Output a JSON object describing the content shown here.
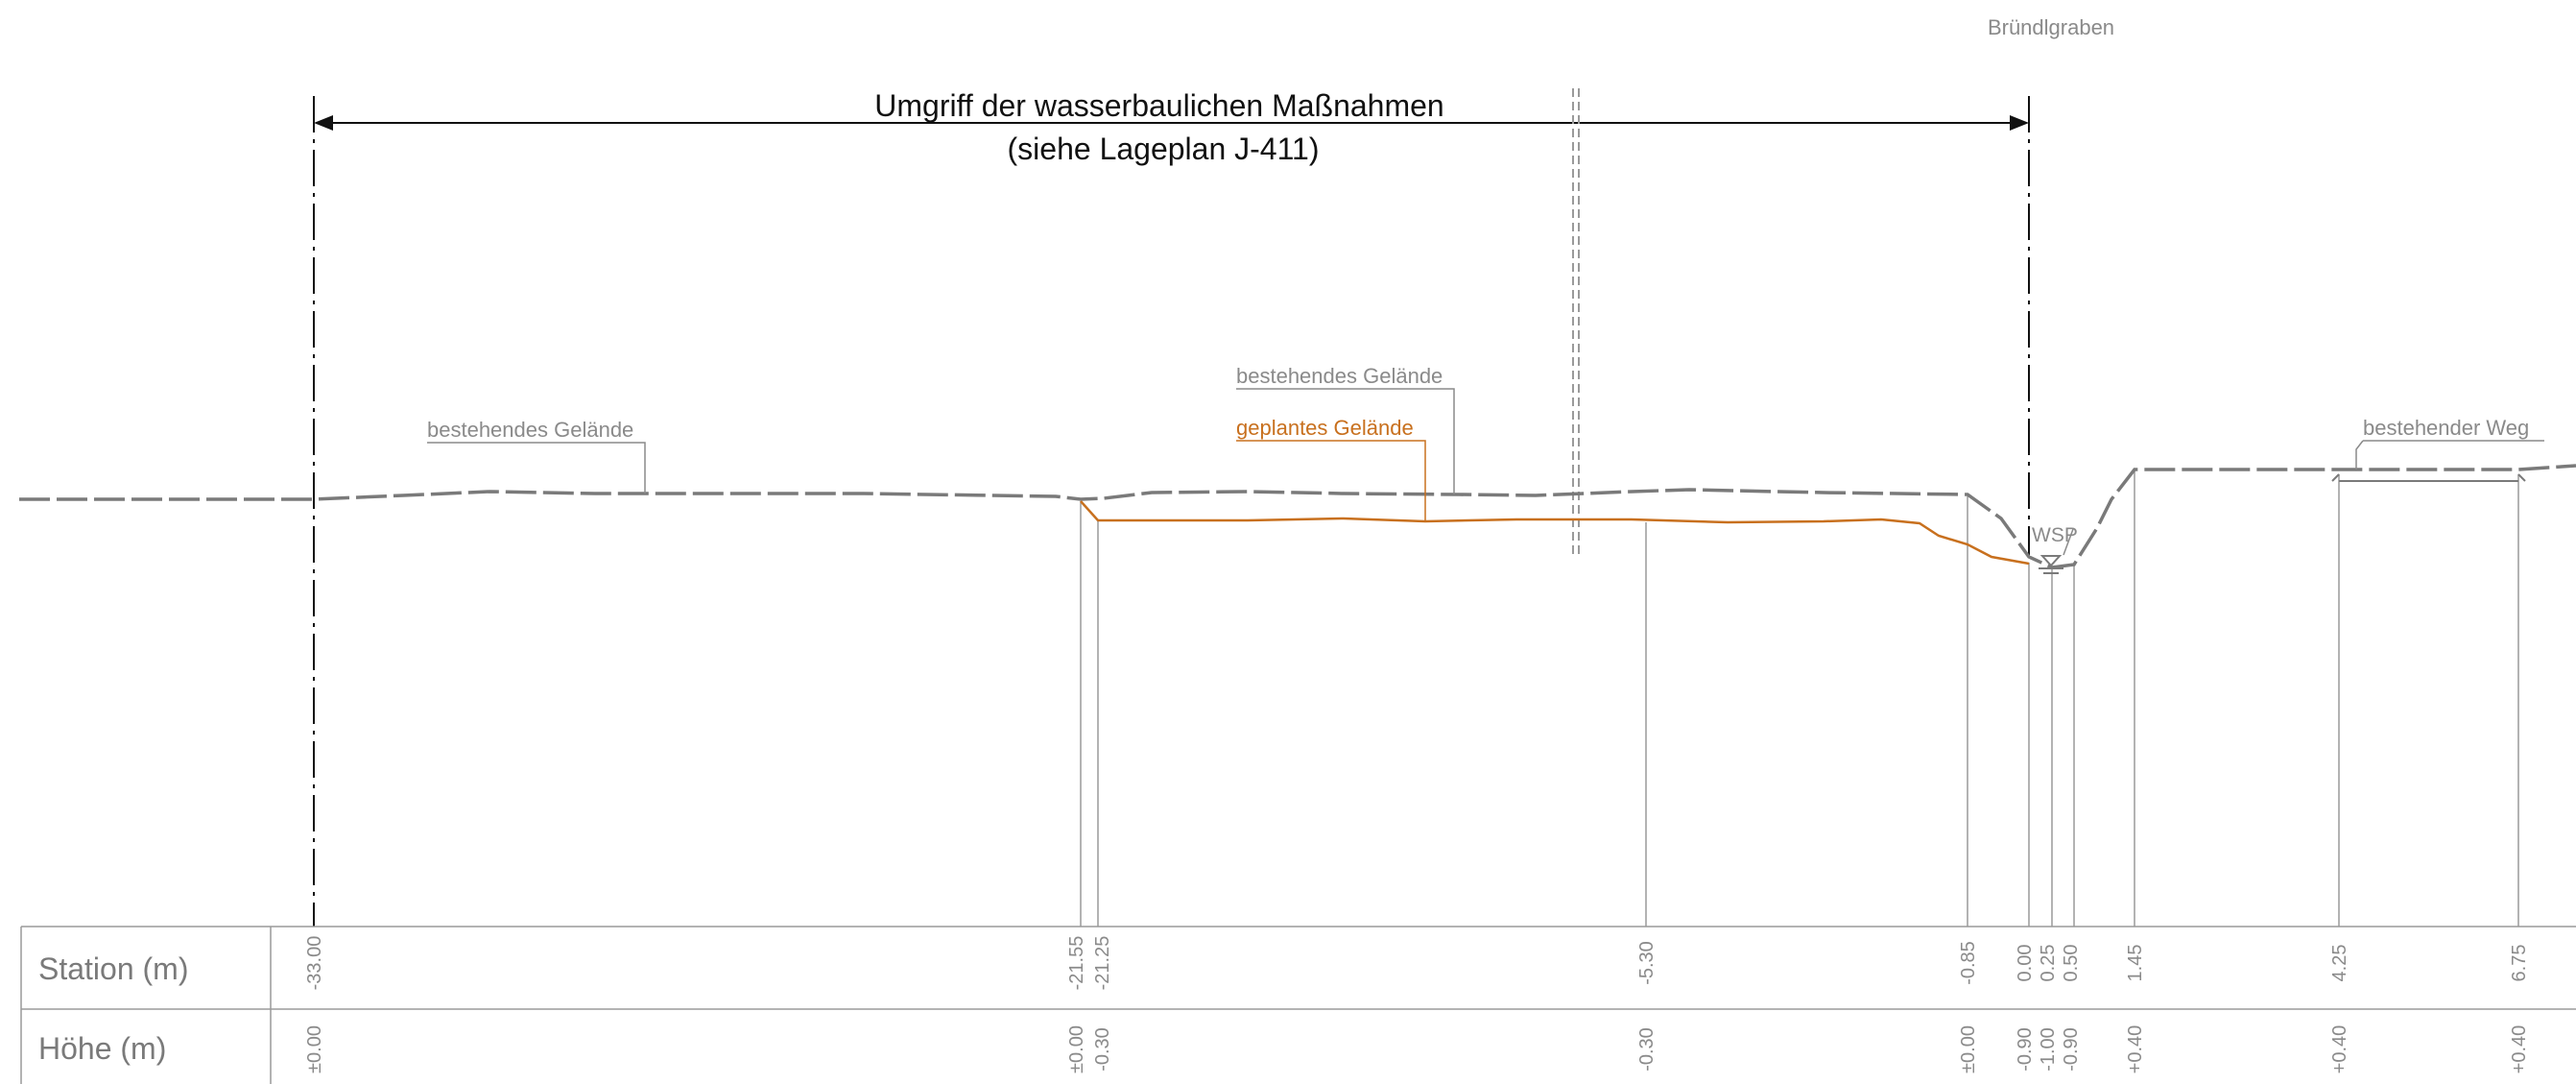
{
  "top_label": "Bründlgraben",
  "extent": {
    "line1": "Umgriff der wasserbaulichen Maßnahmen",
    "line2": "(siehe Lageplan J-411)"
  },
  "labels": {
    "existing_terrain_left": "bestehendes Gelände",
    "existing_terrain_mid": "bestehendes Gelände",
    "planned_terrain": "geplantes Gelände",
    "existing_path": "bestehender Weg",
    "water_level": "WSP"
  },
  "table": {
    "station_header": "Station (m)",
    "height_header": "Höhe (m)",
    "stations": [
      "-33.00",
      "-21.55",
      "-21.25",
      "-5.30",
      "-0.85",
      "0.00",
      "0.25",
      "0.50",
      "1.45",
      "4.25",
      "6.75"
    ],
    "heights": [
      "±0.00",
      "±0.00",
      "-0.30",
      "-0.30",
      "±0.00",
      "-0.90",
      "-1.00",
      "-0.90",
      "+0.40",
      "+0.40",
      "+0.40"
    ]
  },
  "colors": {
    "existing_line": "#7a7a7a",
    "planned_line": "#c8701e",
    "table_line": "#9a9a9a",
    "title_text": "#111111"
  }
}
